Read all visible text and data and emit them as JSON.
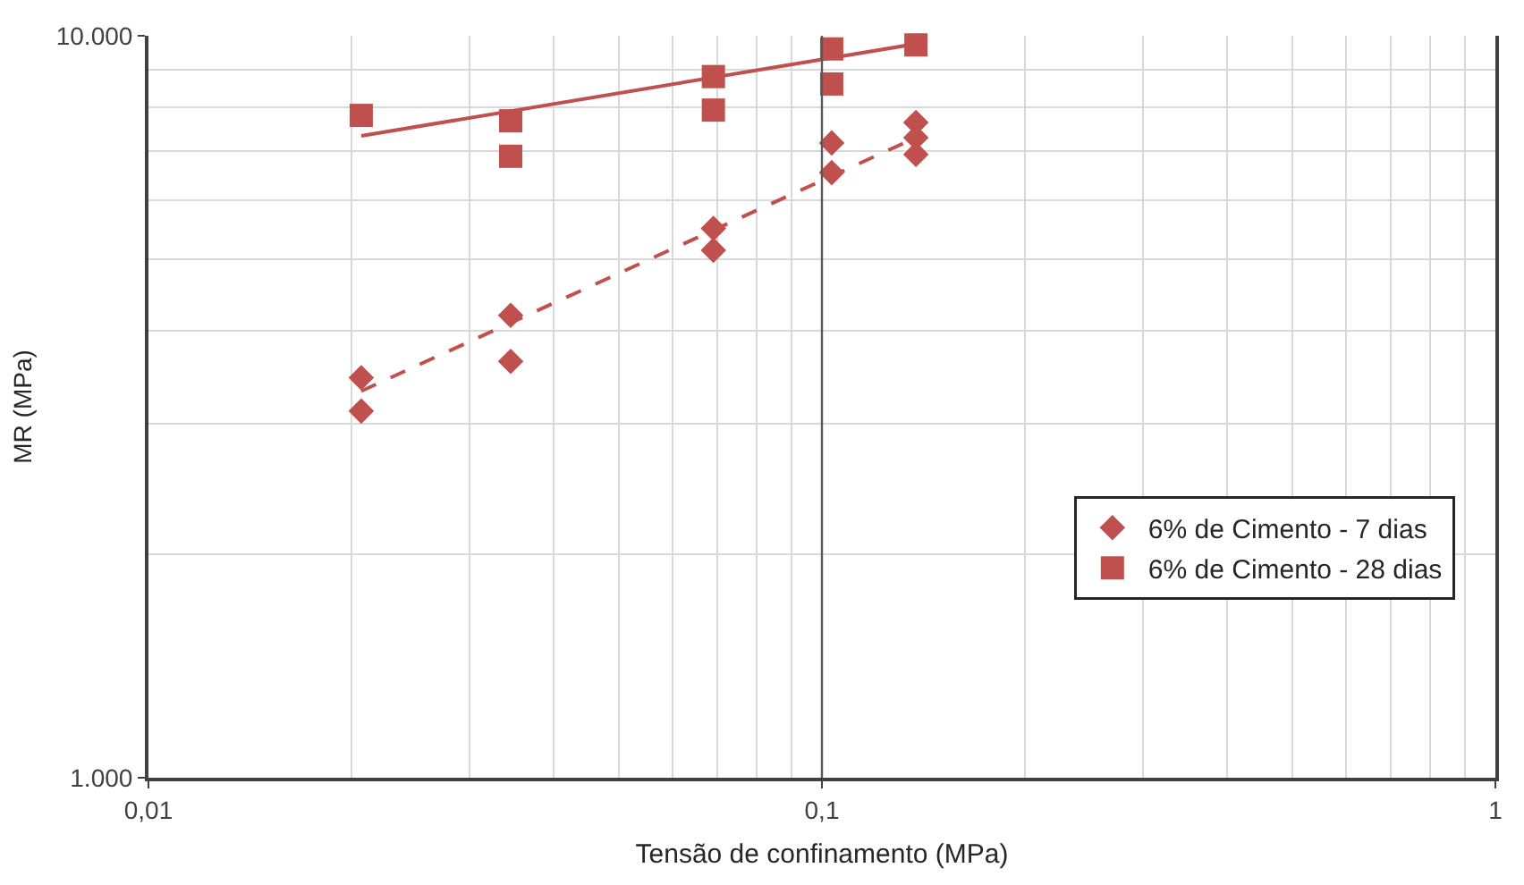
{
  "chart_data": {
    "type": "scatter",
    "xlabel": "Tensão de confinamento (MPa)",
    "ylabel": "MR (MPa)",
    "log": "xy",
    "xlim": [
      0.01,
      1
    ],
    "ylim": [
      1000,
      10000
    ],
    "xticks": [
      {
        "value": 0.01,
        "label": "0,01"
      },
      {
        "value": 0.02,
        "label": null
      },
      {
        "value": 0.03,
        "label": null
      },
      {
        "value": 0.04,
        "label": null
      },
      {
        "value": 0.05,
        "label": null
      },
      {
        "value": 0.06,
        "label": null
      },
      {
        "value": 0.07,
        "label": null
      },
      {
        "value": 0.08,
        "label": null
      },
      {
        "value": 0.09,
        "label": null
      },
      {
        "value": 0.1,
        "label": "0,1"
      },
      {
        "value": 0.2,
        "label": null
      },
      {
        "value": 0.3,
        "label": null
      },
      {
        "value": 0.4,
        "label": null
      },
      {
        "value": 0.5,
        "label": null
      },
      {
        "value": 0.6,
        "label": null
      },
      {
        "value": 0.7,
        "label": null
      },
      {
        "value": 0.8,
        "label": null
      },
      {
        "value": 0.9,
        "label": null
      },
      {
        "value": 1,
        "label": "1"
      }
    ],
    "yticks": [
      {
        "value": 1000,
        "label": "1.000"
      },
      {
        "value": 2000,
        "label": null
      },
      {
        "value": 3000,
        "label": null
      },
      {
        "value": 4000,
        "label": null
      },
      {
        "value": 5000,
        "label": null
      },
      {
        "value": 6000,
        "label": null
      },
      {
        "value": 7000,
        "label": null
      },
      {
        "value": 8000,
        "label": null
      },
      {
        "value": 9000,
        "label": null
      },
      {
        "value": 10000,
        "label": "10.000"
      }
    ],
    "grid": true,
    "legend": "bottom right",
    "ref_lines": [
      {
        "axis": "x",
        "value": 0.1,
        "color": "#595959"
      }
    ],
    "series": [
      {
        "name": "6% de Cimento - 7 dias",
        "color": "#c0504d",
        "marker": "diamond",
        "x": [
          0.0207,
          0.0207,
          0.0345,
          0.0345,
          0.069,
          0.069,
          0.1034,
          0.1034,
          0.1379,
          0.1379,
          0.1379
        ],
        "values": [
          3460,
          3120,
          4200,
          3640,
          5500,
          5140,
          7170,
          6540,
          7640,
          7290,
          6920
        ]
      },
      {
        "name": "6% de Cimento - 28 dias",
        "color": "#c0504d",
        "marker": "square",
        "x": [
          0.0207,
          0.0345,
          0.0345,
          0.069,
          0.069,
          0.1034,
          0.1034,
          0.1379
        ],
        "values": [
          7810,
          7680,
          6880,
          8810,
          7940,
          9600,
          8610,
          9720
        ]
      },
      {
        "type": "line",
        "color": "#c0504d",
        "line_style": "dashed",
        "x": [
          0.0207,
          0.1379
        ],
        "values": [
          3320,
          7290
        ]
      },
      {
        "type": "line",
        "color": "#c0504d",
        "line_style": "solid",
        "x": [
          0.0207,
          0.1379
        ],
        "values": [
          7330,
          9750
        ]
      }
    ]
  }
}
